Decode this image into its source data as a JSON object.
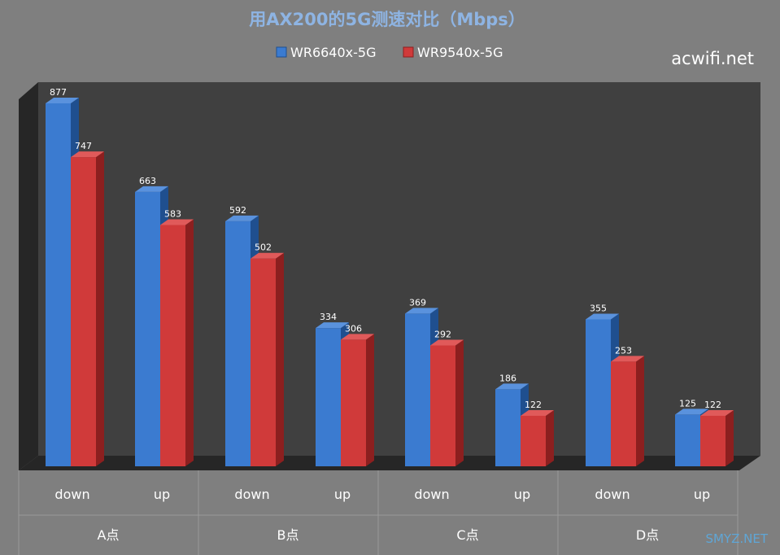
{
  "chart_data": {
    "type": "bar",
    "title": "用AX200的5G测速对比（Mbps）",
    "categories": [
      "down",
      "up",
      "down",
      "up",
      "down",
      "up",
      "down",
      "up"
    ],
    "groups": [
      "A点",
      "B点",
      "C点",
      "D点"
    ],
    "series": [
      {
        "name": "WR6640x-5G",
        "values": [
          877,
          663,
          592,
          334,
          369,
          186,
          355,
          125
        ],
        "color": "#3b7bd0"
      },
      {
        "name": "WR9540x-5G",
        "values": [
          747,
          583,
          502,
          306,
          292,
          122,
          253,
          122
        ],
        "color": "#d03a3a"
      }
    ],
    "ylim": [
      0,
      900
    ],
    "grid": false,
    "legend_position": "top"
  },
  "watermarks": {
    "top_right": "acwifi.net",
    "bottom_right": "SMYZ.NET"
  },
  "colors": {
    "background": "#7f7f7f",
    "plot_back": "#404040",
    "title": "#8eb4e3"
  }
}
